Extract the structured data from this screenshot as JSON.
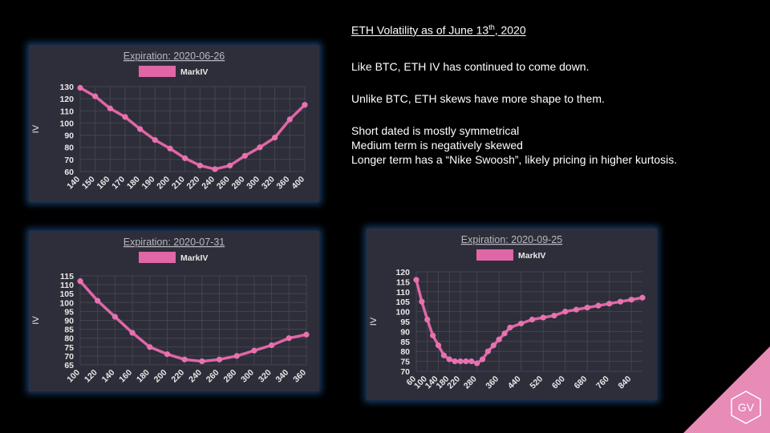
{
  "text": {
    "heading_main": "ETH Volatility as of June 13",
    "heading_sup": "th",
    "heading_end": ", 2020",
    "p1": "Like BTC, ETH IV has continued to come down.",
    "p2": "Unlike BTC, ETH skews have more shape to them.",
    "p3": "Short dated is mostly symmetrical",
    "p4": "Medium term is negatively skewed",
    "p5": "Longer term has a “Nike Swoosh”, likely pricing in higher kurtosis."
  },
  "logo": {
    "text": "GV",
    "color": "#e88bb6"
  },
  "colors": {
    "series": "#e066a6",
    "panel_bg": "#2e2e3a",
    "panel_glow": "#286ebe"
  },
  "chart_data": [
    {
      "type": "line",
      "title": "Expiration: 2020-06-26",
      "ylabel": "IV",
      "legend": "top",
      "grid": true,
      "yticks": [
        60,
        70,
        80,
        90,
        100,
        110,
        120,
        130
      ],
      "ylim": [
        60,
        130
      ],
      "series": [
        {
          "name": "MarkIV",
          "x": [
            "140",
            "150",
            "160",
            "170",
            "180",
            "190",
            "200",
            "210",
            "220",
            "240",
            "260",
            "280",
            "300",
            "320",
            "360",
            "400"
          ],
          "values": [
            129,
            122,
            112,
            105,
            95,
            86,
            79,
            71,
            65,
            62,
            65,
            73,
            80,
            88,
            103,
            115
          ]
        }
      ]
    },
    {
      "type": "line",
      "title": "Expiration: 2020-07-31",
      "ylabel": "IV",
      "legend": "top",
      "grid": true,
      "yticks": [
        65,
        70,
        75,
        80,
        85,
        90,
        95,
        100,
        105,
        110,
        115
      ],
      "ylim": [
        65,
        115
      ],
      "series": [
        {
          "name": "MarkIV",
          "x": [
            "100",
            "120",
            "140",
            "160",
            "180",
            "200",
            "220",
            "240",
            "260",
            "280",
            "300",
            "320",
            "340",
            "360"
          ],
          "values": [
            112,
            101,
            92,
            83,
            75,
            71,
            68,
            67,
            68,
            70,
            73,
            76,
            80,
            82
          ]
        }
      ]
    },
    {
      "type": "line",
      "title": "Expiration: 2020-09-25",
      "ylabel": "IV",
      "legend": "top",
      "grid": true,
      "yticks": [
        70,
        75,
        80,
        85,
        90,
        95,
        100,
        105,
        110,
        115,
        120
      ],
      "ylim": [
        70,
        120
      ],
      "xticks": [
        "60",
        "100",
        "140",
        "180",
        "220",
        "280",
        "360",
        "440",
        "520",
        "600",
        "680",
        "760",
        "840"
      ],
      "series": [
        {
          "name": "MarkIV",
          "x": [
            60,
            80,
            100,
            120,
            140,
            160,
            180,
            200,
            220,
            240,
            260,
            280,
            300,
            320,
            340,
            360,
            380,
            400,
            440,
            480,
            520,
            560,
            600,
            640,
            680,
            720,
            760,
            800,
            840,
            880
          ],
          "values": [
            116,
            105,
            96,
            88,
            83,
            78,
            76,
            75,
            75,
            75,
            75,
            74,
            76,
            80,
            83,
            86,
            89,
            92,
            94,
            96,
            97,
            98,
            100,
            101,
            102,
            103,
            104,
            105,
            106,
            107
          ]
        }
      ]
    }
  ]
}
